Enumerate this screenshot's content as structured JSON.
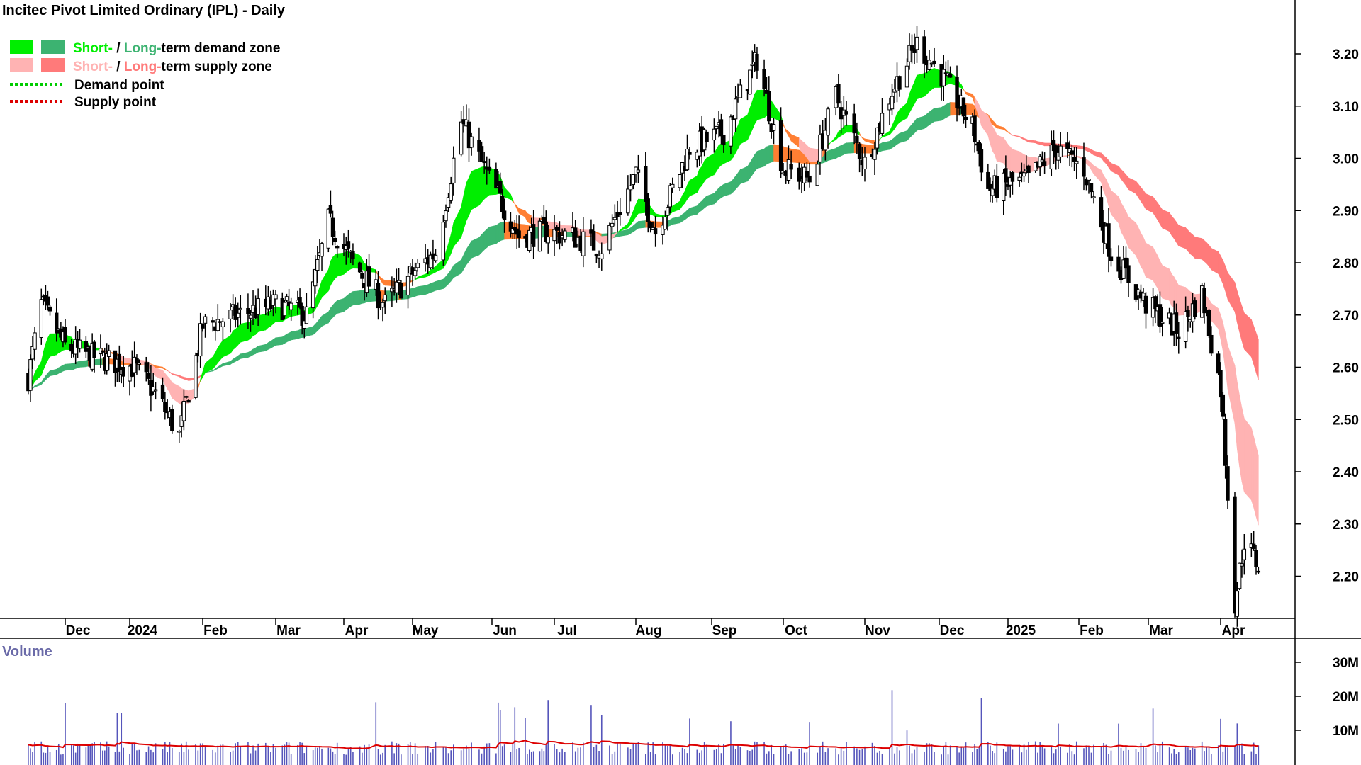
{
  "title": "Incitec Pivot Limited Ordinary (IPL) - Daily",
  "legend": {
    "demand_zone": {
      "short": "Short-",
      "sep": " / ",
      "long": "Long-",
      "rest": "term demand zone"
    },
    "supply_zone": {
      "short": "Short-",
      "sep": " / ",
      "long": "Long-",
      "rest": "term supply zone"
    },
    "demand_point": "Demand point",
    "supply_point": "Supply point"
  },
  "colors": {
    "short_demand": "#00ee00",
    "long_demand": "#3cb371",
    "short_supply": "#ffb3b3",
    "long_supply": "#ff7a7a",
    "transition_zone": "#ff7f33",
    "candle": "#000000",
    "volume_bar": "#5555bb",
    "volume_avg": "#dd0000",
    "demand_point": "#00cc00",
    "supply_point": "#dd0000"
  },
  "chart_data": {
    "type": "candlestick",
    "price_axis": {
      "ticks": [
        "3.20",
        "3.10",
        "3.00",
        "2.90",
        "2.80",
        "2.70",
        "2.60",
        "2.50",
        "2.40",
        "2.30",
        "2.20"
      ],
      "range": [
        2.13,
        3.3
      ]
    },
    "time_axis": {
      "ticks": [
        "Dec",
        "2024",
        "Feb",
        "Mar",
        "Apr",
        "May",
        "Jun",
        "Jul",
        "Aug",
        "Sep",
        "Oct",
        "Nov",
        "Dec",
        "2025",
        "Feb",
        "Mar",
        "Apr"
      ]
    },
    "approx_close_path": [
      [
        "2023-11-14",
        2.58
      ],
      [
        "2023-11-20",
        2.72
      ],
      [
        "2023-12-01",
        2.64
      ],
      [
        "2023-12-15",
        2.62
      ],
      [
        "2024-01-03",
        2.6
      ],
      [
        "2024-01-12",
        2.55
      ],
      [
        "2024-01-22",
        2.47
      ],
      [
        "2024-02-01",
        2.68
      ],
      [
        "2024-02-15",
        2.7
      ],
      [
        "2024-03-01",
        2.72
      ],
      [
        "2024-03-15",
        2.7
      ],
      [
        "2024-03-25",
        2.88
      ],
      [
        "2024-04-05",
        2.8
      ],
      [
        "2024-04-19",
        2.72
      ],
      [
        "2024-05-01",
        2.78
      ],
      [
        "2024-05-10",
        2.82
      ],
      [
        "2024-05-20",
        3.07
      ],
      [
        "2024-05-31",
        2.96
      ],
      [
        "2024-06-14",
        2.85
      ],
      [
        "2024-06-28",
        2.86
      ],
      [
        "2024-07-08",
        2.85
      ],
      [
        "2024-07-19",
        2.83
      ],
      [
        "2024-08-01",
        2.97
      ],
      [
        "2024-08-09",
        2.86
      ],
      [
        "2024-08-23",
        3.02
      ],
      [
        "2024-09-06",
        3.05
      ],
      [
        "2024-09-20",
        3.19
      ],
      [
        "2024-10-01",
        2.98
      ],
      [
        "2024-10-11",
        2.96
      ],
      [
        "2024-10-21",
        3.12
      ],
      [
        "2024-11-01",
        2.99
      ],
      [
        "2024-11-12",
        3.13
      ],
      [
        "2024-11-22",
        3.22
      ],
      [
        "2024-12-02",
        3.16
      ],
      [
        "2024-12-16",
        3.06
      ],
      [
        "2024-12-23",
        2.94
      ],
      [
        "2025-01-10",
        2.96
      ],
      [
        "2025-01-22",
        3.02
      ],
      [
        "2025-02-03",
        2.98
      ],
      [
        "2025-02-14",
        2.82
      ],
      [
        "2025-02-28",
        2.72
      ],
      [
        "2025-03-14",
        2.67
      ],
      [
        "2025-03-24",
        2.74
      ],
      [
        "2025-04-01",
        2.56
      ],
      [
        "2025-04-04",
        2.36
      ],
      [
        "2025-04-07",
        2.15
      ],
      [
        "2025-04-11",
        2.27
      ],
      [
        "2025-04-17",
        2.22
      ]
    ],
    "volume_axis": {
      "ticks": [
        "30M",
        "20M",
        "10M"
      ],
      "label": "Volume"
    }
  }
}
